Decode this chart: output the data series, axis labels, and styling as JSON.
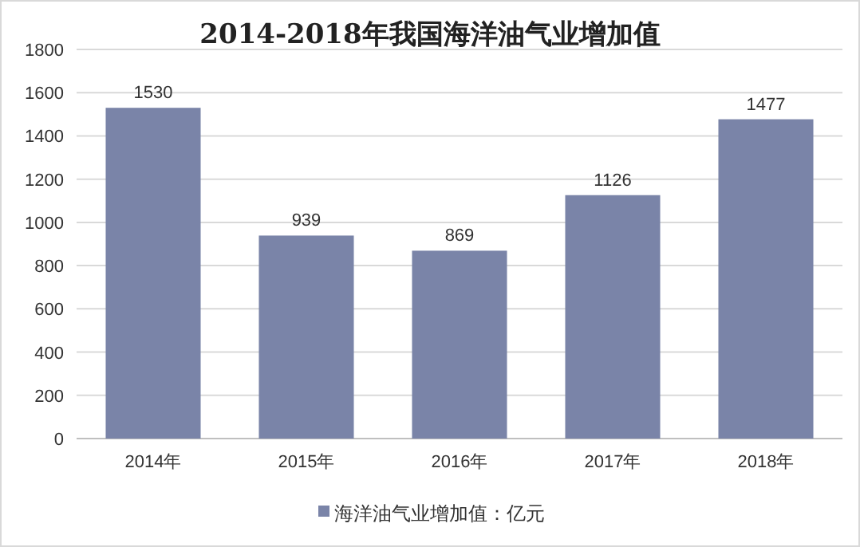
{
  "chart_data": {
    "type": "bar",
    "title": "2014-2018年我国海洋油气业增加值",
    "categories": [
      "2014年",
      "2015年",
      "2016年",
      "2017年",
      "2018年"
    ],
    "series": [
      {
        "name": "海洋油气业增加值：亿元",
        "color": "#7a84a8",
        "values": [
          1530,
          939,
          869,
          1126,
          1477
        ]
      }
    ],
    "ylim": [
      0,
      1800
    ],
    "yticks": [
      0,
      200,
      400,
      600,
      800,
      1000,
      1200,
      1400,
      1600,
      1800
    ],
    "grid": "y",
    "legend": "bottom",
    "data_labels": true
  }
}
